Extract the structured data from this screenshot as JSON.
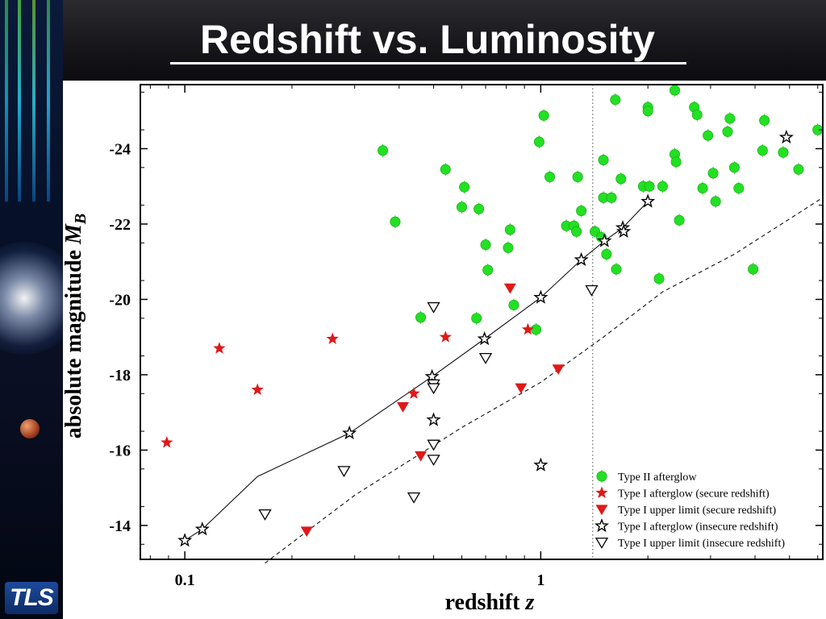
{
  "header": {
    "title": "Redshift vs. Luminosity"
  },
  "sidebar": {
    "logo_text": "TLS"
  },
  "colors": {
    "type2": "#22e022",
    "type1": "#e01818",
    "insecure": "#000000"
  },
  "chart_data": {
    "type": "scatter",
    "xlabel": "redshift",
    "xlabel_var": "z",
    "ylabel": "absolute magnitude",
    "ylabel_var": "M",
    "ylabel_sub": "B",
    "xscale": "log",
    "xlim": [
      0.075,
      6.2
    ],
    "ylim": [
      -13.1,
      -25.7
    ],
    "x_ticks": [
      {
        "value": 0.1,
        "label": "0.1"
      },
      {
        "value": 1,
        "label": "1"
      }
    ],
    "y_ticks": [
      {
        "value": -14,
        "label": "-14"
      },
      {
        "value": -16,
        "label": "-16"
      },
      {
        "value": -18,
        "label": "-18"
      },
      {
        "value": -20,
        "label": "-20"
      },
      {
        "value": -22,
        "label": "-22"
      },
      {
        "value": -24,
        "label": "-24"
      }
    ],
    "vertical_line_x": 1.4,
    "legend_position": "bottom-right",
    "series": [
      {
        "name": "Type II afterglow",
        "marker": "circle",
        "color": "#22e022",
        "points": [
          [
            0.36,
            -23.95
          ],
          [
            0.39,
            -22.06
          ],
          [
            0.46,
            -19.52
          ],
          [
            0.54,
            -23.45
          ],
          [
            0.6,
            -22.45
          ],
          [
            0.61,
            -22.98
          ],
          [
            0.66,
            -19.5
          ],
          [
            0.67,
            -22.4
          ],
          [
            0.7,
            -21.45
          ],
          [
            0.71,
            -20.78
          ],
          [
            0.82,
            -21.85
          ],
          [
            0.81,
            -21.37
          ],
          [
            0.84,
            -19.85
          ],
          [
            0.97,
            -19.2
          ],
          [
            0.99,
            -24.18
          ],
          [
            1.02,
            -24.88
          ],
          [
            1.06,
            -23.25
          ],
          [
            1.18,
            -21.95
          ],
          [
            1.24,
            -21.95
          ],
          [
            1.26,
            -21.8
          ],
          [
            1.27,
            -23.25
          ],
          [
            1.3,
            -22.35
          ],
          [
            1.42,
            -21.8
          ],
          [
            1.48,
            -21.65
          ],
          [
            1.5,
            -23.7
          ],
          [
            1.5,
            -22.7
          ],
          [
            1.53,
            -21.2
          ],
          [
            1.58,
            -22.7
          ],
          [
            1.62,
            -25.3
          ],
          [
            1.63,
            -20.8
          ],
          [
            1.68,
            -23.2
          ],
          [
            1.94,
            -23.0
          ],
          [
            2.0,
            -25.1
          ],
          [
            2.0,
            -25.0
          ],
          [
            2.02,
            -23.0
          ],
          [
            2.15,
            -20.55
          ],
          [
            2.2,
            -23.0
          ],
          [
            2.38,
            -25.55
          ],
          [
            2.38,
            -23.85
          ],
          [
            2.4,
            -23.65
          ],
          [
            2.45,
            -22.1
          ],
          [
            2.7,
            -25.1
          ],
          [
            2.75,
            -24.9
          ],
          [
            2.85,
            -22.95
          ],
          [
            2.95,
            -24.35
          ],
          [
            3.05,
            -23.35
          ],
          [
            3.1,
            -22.6
          ],
          [
            3.35,
            -24.45
          ],
          [
            3.4,
            -24.8
          ],
          [
            3.5,
            -23.5
          ],
          [
            3.6,
            -22.95
          ],
          [
            3.95,
            -20.8
          ],
          [
            4.2,
            -23.95
          ],
          [
            4.25,
            -24.75
          ],
          [
            4.8,
            -23.9
          ],
          [
            5.3,
            -23.45
          ],
          [
            6.0,
            -24.5
          ]
        ]
      },
      {
        "name": "Type I afterglow (secure redshift)",
        "marker": "star",
        "color": "#e01818",
        "points": [
          [
            0.089,
            -16.2
          ],
          [
            0.125,
            -18.7
          ],
          [
            0.16,
            -17.6
          ],
          [
            0.26,
            -18.95
          ],
          [
            0.44,
            -17.5
          ],
          [
            0.54,
            -19.0
          ],
          [
            0.92,
            -19.2
          ]
        ]
      },
      {
        "name": "Type I upper limit (secure redshift)",
        "marker": "triangle-down-filled",
        "color": "#e01818",
        "points": [
          [
            0.22,
            -13.85
          ],
          [
            0.41,
            -17.15
          ],
          [
            0.46,
            -15.85
          ],
          [
            0.82,
            -20.3
          ],
          [
            0.88,
            -17.65
          ],
          [
            1.12,
            -18.15
          ]
        ]
      },
      {
        "name": "Type I afterglow (insecure redshift)",
        "marker": "star-open",
        "color": "#000000",
        "points": [
          [
            0.1,
            -13.6
          ],
          [
            0.112,
            -13.9
          ],
          [
            0.29,
            -16.45
          ],
          [
            0.495,
            -17.95
          ],
          [
            0.5,
            -16.8
          ],
          [
            0.695,
            -18.95
          ],
          [
            1.0,
            -20.05
          ],
          [
            1.0,
            -15.6
          ],
          [
            1.3,
            -21.05
          ],
          [
            1.51,
            -21.55
          ],
          [
            1.7,
            -21.9
          ],
          [
            1.71,
            -21.8
          ],
          [
            2.0,
            -22.6
          ],
          [
            4.9,
            -24.3
          ]
        ]
      },
      {
        "name": "Type I upper limit (insecure redshift)",
        "marker": "triangle-down-open",
        "color": "#000000",
        "points": [
          [
            0.168,
            -14.3
          ],
          [
            0.28,
            -15.45
          ],
          [
            0.44,
            -14.75
          ],
          [
            0.5,
            -19.8
          ],
          [
            0.5,
            -17.75
          ],
          [
            0.5,
            -17.65
          ],
          [
            0.5,
            -16.15
          ],
          [
            0.5,
            -15.75
          ],
          [
            0.7,
            -18.45
          ],
          [
            1.39,
            -20.25
          ]
        ]
      }
    ],
    "fit_line": {
      "style": "solid",
      "points": [
        [
          0.1,
          -13.6
        ],
        [
          0.112,
          -13.9
        ],
        [
          0.16,
          -15.3
        ],
        [
          0.29,
          -16.45
        ],
        [
          0.495,
          -17.95
        ],
        [
          0.695,
          -18.95
        ],
        [
          1.0,
          -20.05
        ],
        [
          1.3,
          -21.05
        ],
        [
          1.51,
          -21.55
        ],
        [
          1.7,
          -21.9
        ],
        [
          2.0,
          -22.6
        ]
      ]
    },
    "limit_line": {
      "style": "dashed",
      "points": [
        [
          0.168,
          -13.0
        ],
        [
          0.3,
          -14.8
        ],
        [
          0.6,
          -16.6
        ],
        [
          1.0,
          -17.8
        ],
        [
          1.5,
          -19.0
        ],
        [
          2.2,
          -20.2
        ],
        [
          3.5,
          -21.2
        ],
        [
          6.2,
          -22.7
        ]
      ]
    }
  }
}
